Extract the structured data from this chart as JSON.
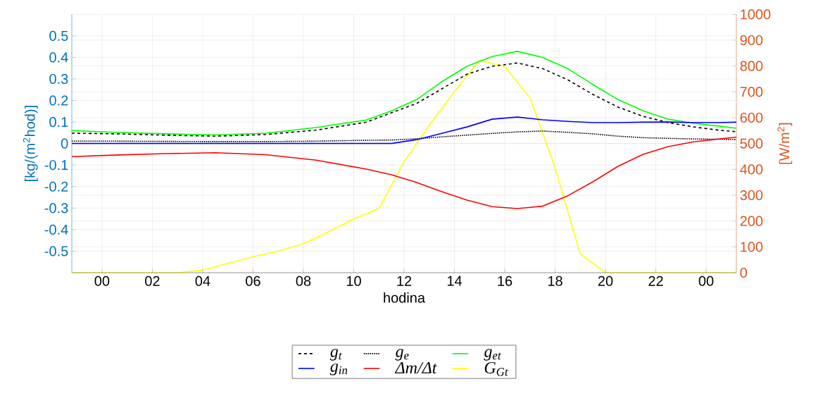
{
  "chart_data": {
    "type": "line",
    "xlabel": "hodina",
    "ylabel": "[kg/(m$^{2}$hod)]",
    "y2label": "[W/m$^{2}$]",
    "xlim": [
      -1.2,
      25.2
    ],
    "xticks": [
      {
        "value": 0,
        "label": "00"
      },
      {
        "value": 2,
        "label": "02"
      },
      {
        "value": 4,
        "label": "04"
      },
      {
        "value": 6,
        "label": "06"
      },
      {
        "value": 8,
        "label": "08"
      },
      {
        "value": 10,
        "label": "10"
      },
      {
        "value": 12,
        "label": "12"
      },
      {
        "value": 14,
        "label": "14"
      },
      {
        "value": 16,
        "label": "16"
      },
      {
        "value": 18,
        "label": "18"
      },
      {
        "value": 20,
        "label": "20"
      },
      {
        "value": 22,
        "label": "22"
      },
      {
        "value": 24,
        "label": "00"
      }
    ],
    "ylim": [
      -0.6,
      0.6
    ],
    "yticks": [
      -0.5,
      -0.4,
      -0.3,
      -0.2,
      -0.1,
      0,
      0.1,
      0.2,
      0.3,
      0.4,
      0.5
    ],
    "y2lim": [
      0,
      1000
    ],
    "y2ticks": [
      0,
      100,
      200,
      300,
      400,
      500,
      600,
      700,
      800,
      900,
      1000
    ],
    "grid": true,
    "legend": "bottom",
    "series": [
      {
        "name": "g$_{t}$",
        "color": "#000000",
        "line_style": "dashed",
        "x": [
          -1.2,
          0.5,
          2.5,
          4.5,
          6.5,
          8.5,
          10.5,
          11.5,
          12.5,
          13.5,
          14.5,
          15.5,
          16.5,
          17.5,
          18.5,
          19.5,
          20.5,
          21.5,
          22.5,
          23.5,
          24.5,
          25.2
        ],
        "values": [
          0.048,
          0.045,
          0.039,
          0.034,
          0.042,
          0.062,
          0.099,
          0.143,
          0.186,
          0.254,
          0.322,
          0.359,
          0.374,
          0.348,
          0.296,
          0.228,
          0.169,
          0.126,
          0.097,
          0.077,
          0.062,
          0.055
        ]
      },
      {
        "name": "g$_{e}$",
        "color": "#000000",
        "line_style": "dotted",
        "x": [
          -1.2,
          0.5,
          2.5,
          4.5,
          6.5,
          8.5,
          10.5,
          11.5,
          12.5,
          13.5,
          14.5,
          15.5,
          16.5,
          17.5,
          18.5,
          19.5,
          20.5,
          21.5,
          22.5,
          23.5,
          24.5,
          25.2
        ],
        "values": [
          0.011,
          0.011,
          0.01,
          0.009,
          0.009,
          0.011,
          0.015,
          0.016,
          0.022,
          0.031,
          0.039,
          0.047,
          0.054,
          0.058,
          0.052,
          0.045,
          0.034,
          0.027,
          0.024,
          0.021,
          0.02,
          0.018
        ]
      },
      {
        "name": "g$_{et}$",
        "color": "#00ff00",
        "line_style": "solid",
        "x": [
          -1.2,
          0.5,
          2.5,
          4.5,
          6.5,
          8.5,
          10.5,
          11.5,
          12.5,
          13.5,
          14.5,
          15.5,
          16.5,
          17.5,
          18.5,
          19.5,
          20.5,
          21.5,
          22.5,
          23.5,
          24.5,
          25.2
        ],
        "values": [
          0.06,
          0.052,
          0.045,
          0.04,
          0.048,
          0.074,
          0.109,
          0.152,
          0.204,
          0.287,
          0.359,
          0.404,
          0.428,
          0.4,
          0.348,
          0.274,
          0.204,
          0.152,
          0.113,
          0.094,
          0.081,
          0.071
        ]
      },
      {
        "name": "g$_{in}$",
        "color": "#0000ff",
        "line_style": "solid",
        "x": [
          -1.2,
          0.5,
          2.5,
          4.5,
          6.5,
          8.5,
          10.5,
          11.5,
          12.5,
          13.5,
          14.5,
          15.5,
          16.5,
          17.5,
          18.5,
          19.5,
          20.5,
          21.5,
          22.5,
          23.5,
          24.5,
          25.2
        ],
        "values": [
          0,
          0,
          0,
          0,
          0,
          0,
          0,
          0,
          0.018,
          0.047,
          0.077,
          0.113,
          0.123,
          0.11,
          0.103,
          0.097,
          0.097,
          0.099,
          0.1,
          0.097,
          0.097,
          0.099
        ]
      },
      {
        "name": "Δm/Δt",
        "color": "#ff0000",
        "line_style": "solid",
        "x": [
          -1.2,
          0.5,
          2.5,
          4.5,
          6.5,
          8.5,
          10.5,
          11.5,
          12.5,
          13.5,
          14.5,
          15.5,
          16.5,
          17.5,
          18.5,
          19.5,
          20.5,
          21.5,
          22.5,
          23.5,
          24.5,
          25.2
        ],
        "values": [
          -0.061,
          -0.054,
          -0.047,
          -0.043,
          -0.052,
          -0.077,
          -0.119,
          -0.145,
          -0.181,
          -0.224,
          -0.263,
          -0.293,
          -0.302,
          -0.291,
          -0.243,
          -0.178,
          -0.106,
          -0.05,
          -0.014,
          0.008,
          0.021,
          0.029
        ]
      },
      {
        "name": "G$_{Gt}$",
        "color": "#ffff00",
        "line_style": "solid",
        "axis": "y2",
        "x": [
          -1.2,
          3,
          4,
          6,
          7,
          8,
          9,
          10,
          11,
          12,
          13,
          14,
          15,
          16,
          17,
          18,
          19,
          20,
          25.2
        ],
        "values": [
          0,
          0,
          10,
          62,
          83,
          112,
          158,
          208,
          248,
          430,
          570,
          700,
          822,
          798,
          678,
          406,
          73,
          0,
          0
        ]
      }
    ]
  }
}
